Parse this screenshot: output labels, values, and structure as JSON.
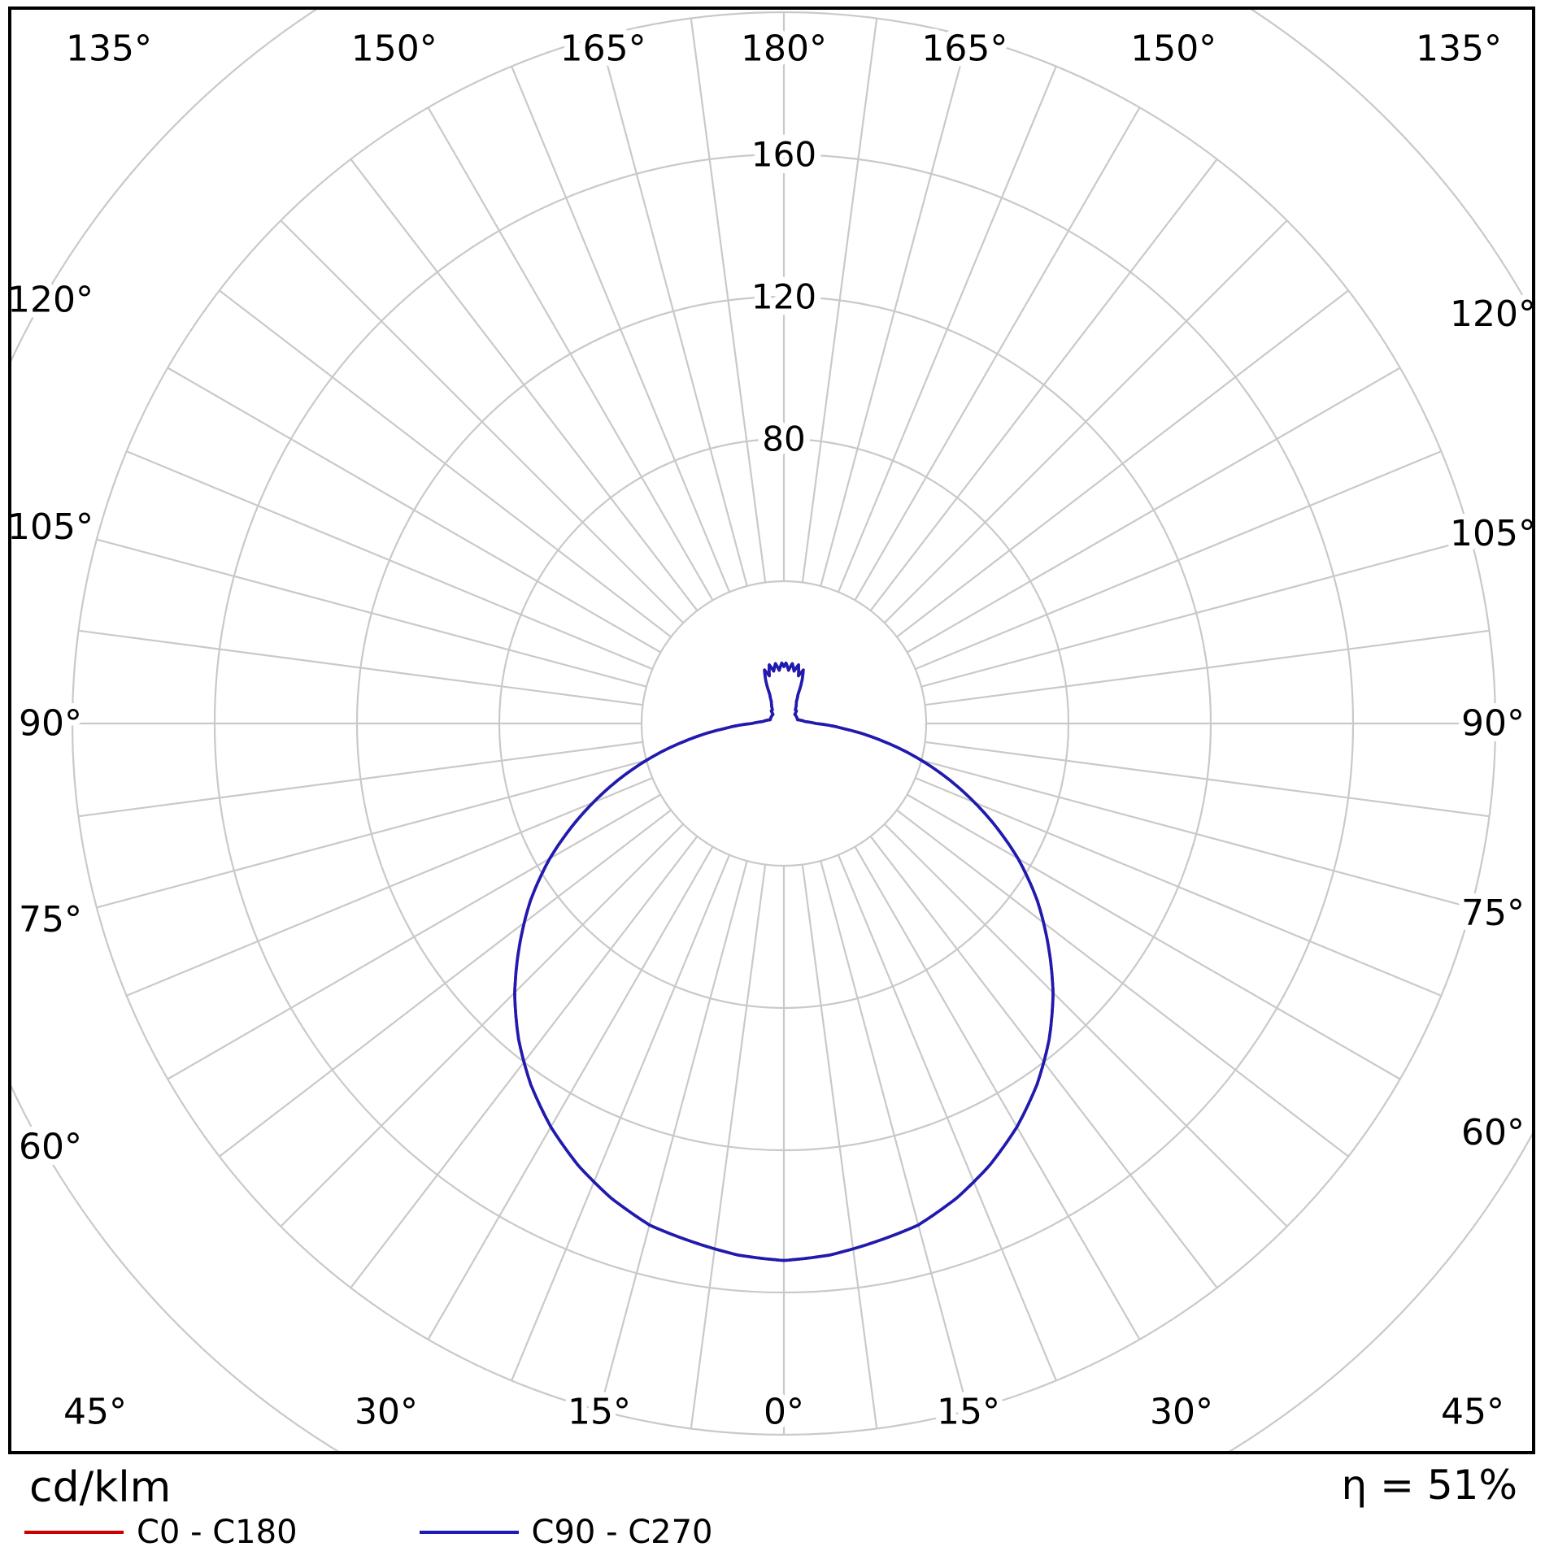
{
  "chart_data": {
    "type": "polar",
    "description": "Luminaire polar luminous intensity distribution curve",
    "units_label": "cd/klm",
    "efficiency_label": "η = 51%",
    "angle_tick_values": [
      0,
      15,
      30,
      45,
      60,
      75,
      90,
      105,
      120,
      135,
      150,
      165,
      180
    ],
    "angle_tick_labels": [
      "0°",
      "15°",
      "30°",
      "45°",
      "60°",
      "75°",
      "90°",
      "105°",
      "120°",
      "135°",
      "150°",
      "165°",
      "180°"
    ],
    "spoke_step_deg": 7.5,
    "ring_values": [
      40,
      80,
      120,
      160,
      200,
      240
    ],
    "spoke_outer_ring": 200,
    "ring_tick_labels": [
      {
        "value": 80,
        "label": "80"
      },
      {
        "value": 120,
        "label": "120"
      },
      {
        "value": 160,
        "label": "160"
      }
    ],
    "grid_color": "#c9c9c9",
    "symmetric_mirror": true,
    "series": [
      {
        "name": "C0 - C180",
        "color": "#cc0000",
        "points": [
          [
            0,
            151
          ],
          [
            5,
            150
          ],
          [
            10,
            148
          ],
          [
            15,
            146
          ],
          [
            20,
            142
          ],
          [
            25,
            137
          ],
          [
            30,
            131
          ],
          [
            35,
            124
          ],
          [
            40,
            116
          ],
          [
            45,
            107
          ],
          [
            50,
            97
          ],
          [
            55,
            87
          ],
          [
            60,
            76
          ],
          [
            65,
            64
          ],
          [
            70,
            52
          ],
          [
            75,
            40
          ],
          [
            80,
            28
          ],
          [
            85,
            17
          ],
          [
            90,
            9
          ],
          [
            95,
            6
          ],
          [
            100,
            5
          ],
          [
            105,
            4
          ],
          [
            110,
            4
          ],
          [
            115,
            4
          ],
          [
            120,
            4
          ],
          [
            125,
            4
          ],
          [
            130,
            4
          ],
          [
            135,
            5
          ],
          [
            140,
            5
          ],
          [
            145,
            6
          ],
          [
            150,
            7
          ],
          [
            154,
            9
          ],
          [
            157,
            13
          ],
          [
            160,
            16
          ],
          [
            163,
            14
          ],
          [
            166,
            17
          ],
          [
            169,
            15
          ],
          [
            172,
            17
          ],
          [
            175,
            15
          ],
          [
            178,
            17
          ],
          [
            180,
            16
          ]
        ]
      },
      {
        "name": "C90 - C270",
        "color": "#1c1cb4",
        "points": [
          [
            0,
            151
          ],
          [
            5,
            150
          ],
          [
            10,
            148
          ],
          [
            15,
            146
          ],
          [
            20,
            142
          ],
          [
            25,
            137
          ],
          [
            30,
            131
          ],
          [
            35,
            124
          ],
          [
            40,
            116
          ],
          [
            45,
            107
          ],
          [
            50,
            97
          ],
          [
            55,
            87
          ],
          [
            60,
            76
          ],
          [
            65,
            64
          ],
          [
            70,
            52
          ],
          [
            75,
            40
          ],
          [
            80,
            28
          ],
          [
            85,
            17
          ],
          [
            90,
            9
          ],
          [
            95,
            6
          ],
          [
            100,
            5
          ],
          [
            105,
            4
          ],
          [
            110,
            4
          ],
          [
            115,
            4
          ],
          [
            120,
            4
          ],
          [
            125,
            4
          ],
          [
            130,
            4
          ],
          [
            135,
            5
          ],
          [
            140,
            5
          ],
          [
            145,
            6
          ],
          [
            150,
            7
          ],
          [
            154,
            9
          ],
          [
            157,
            13
          ],
          [
            160,
            16
          ],
          [
            163,
            14
          ],
          [
            166,
            17
          ],
          [
            169,
            15
          ],
          [
            172,
            17
          ],
          [
            175,
            15
          ],
          [
            178,
            17
          ],
          [
            180,
            16
          ]
        ]
      }
    ]
  }
}
